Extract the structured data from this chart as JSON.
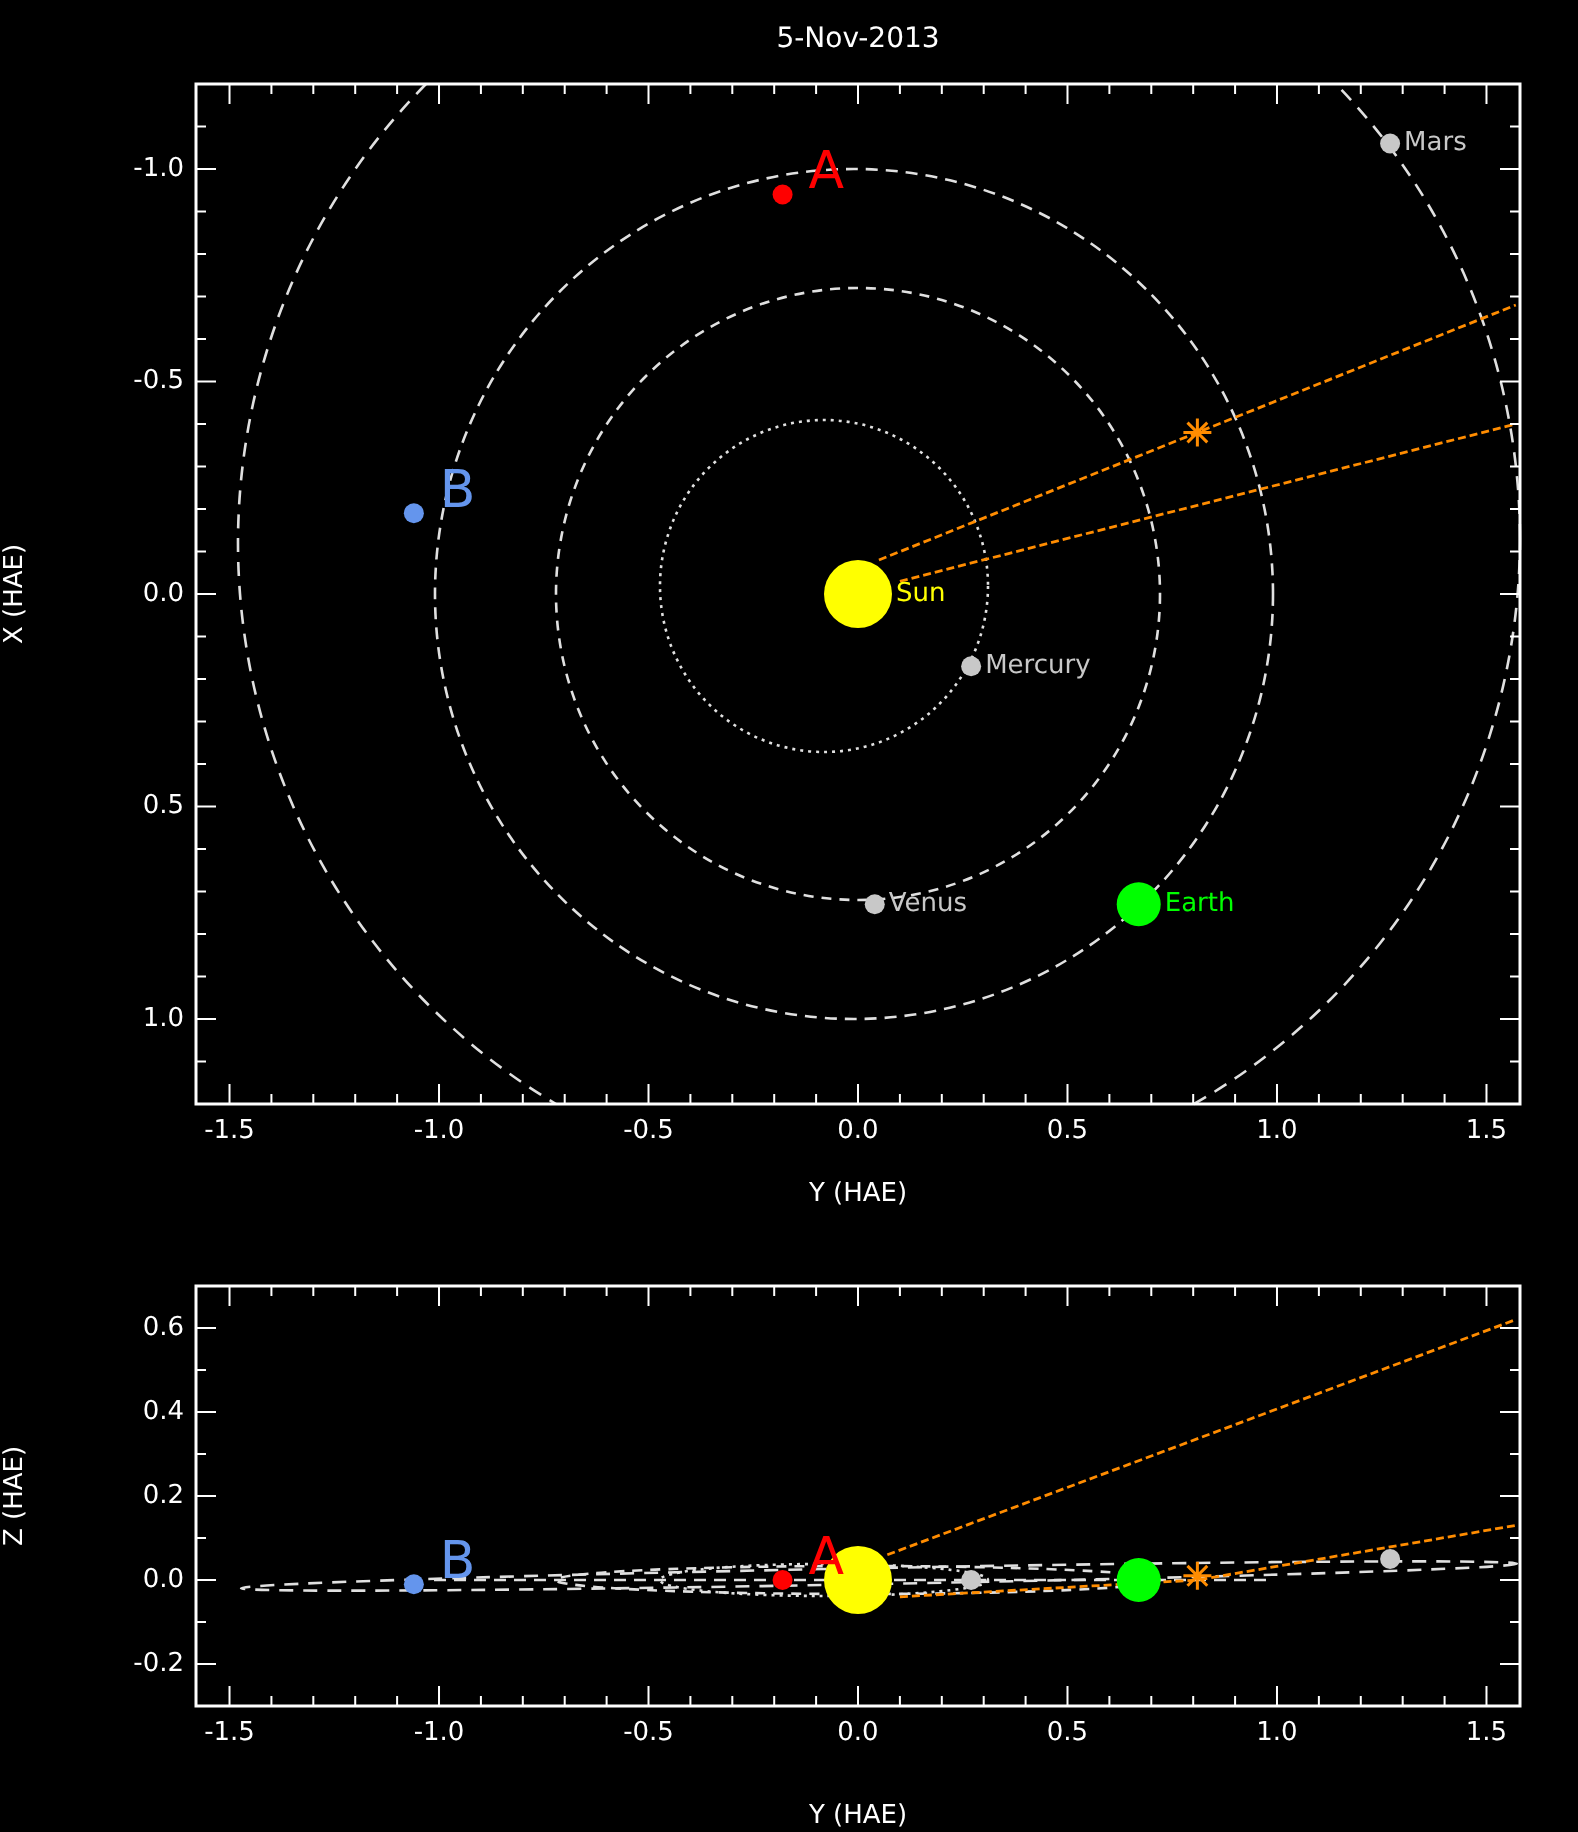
{
  "chart_data": [
    {
      "type": "scatter",
      "title": "5-Nov-2013",
      "xlabel": "Y (HAE)",
      "ylabel": "X (HAE)",
      "xlim": [
        -1.58,
        1.58
      ],
      "ylim": [
        1.2,
        -1.2
      ],
      "xticks": [
        -1.5,
        {
          "value": -1.4,
          "label": null
        },
        {
          "value": -1.3,
          "label": null
        },
        {
          "value": -1.2,
          "label": null
        },
        {
          "value": -1.1,
          "label": null
        },
        {
          "value": -1.0,
          "label": "-1.0"
        },
        {
          "value": -0.9,
          "label": null
        },
        {
          "value": -0.8,
          "label": null
        },
        {
          "value": -0.7,
          "label": null
        },
        {
          "value": -0.6,
          "label": null
        },
        -0.5,
        {
          "value": -0.4,
          "label": null
        },
        {
          "value": -0.3,
          "label": null
        },
        {
          "value": -0.2,
          "label": null
        },
        {
          "value": -0.1,
          "label": null
        },
        {
          "value": 0,
          "label": "0.0"
        },
        {
          "value": 0.1,
          "label": null
        },
        {
          "value": 0.2,
          "label": null
        },
        {
          "value": 0.3,
          "label": null
        },
        {
          "value": 0.4,
          "label": null
        },
        0.5,
        {
          "value": 0.6,
          "label": null
        },
        {
          "value": 0.7,
          "label": null
        },
        {
          "value": 0.8,
          "label": null
        },
        {
          "value": 0.9,
          "label": null
        },
        {
          "value": 1.0,
          "label": "1.0"
        },
        {
          "value": 1.1,
          "label": null
        },
        {
          "value": 1.2,
          "label": null
        },
        {
          "value": 1.3,
          "label": null
        },
        {
          "value": 1.4,
          "label": null
        },
        1.5
      ],
      "yticks": [
        {
          "value": -1.1,
          "label": null
        },
        {
          "value": -1.0,
          "label": "-1.0"
        },
        {
          "value": -0.9,
          "label": null
        },
        {
          "value": -0.8,
          "label": null
        },
        {
          "value": -0.7,
          "label": null
        },
        {
          "value": -0.6,
          "label": null
        },
        -0.5,
        {
          "value": -0.4,
          "label": null
        },
        {
          "value": -0.3,
          "label": null
        },
        {
          "value": -0.2,
          "label": null
        },
        {
          "value": -0.1,
          "label": null
        },
        {
          "value": 0,
          "label": "0.0"
        },
        {
          "value": 0.1,
          "label": null
        },
        {
          "value": 0.2,
          "label": null
        },
        {
          "value": 0.3,
          "label": null
        },
        {
          "value": 0.4,
          "label": null
        },
        0.5,
        {
          "value": 0.6,
          "label": null
        },
        {
          "value": 0.7,
          "label": null
        },
        {
          "value": 0.8,
          "label": null
        },
        {
          "value": 0.9,
          "label": null
        },
        {
          "value": 1.0,
          "label": "1.0"
        },
        {
          "value": 1.1,
          "label": null
        }
      ],
      "series": [
        {
          "type": "scatter",
          "name": "Sun",
          "color": "#ffff00",
          "x": [
            0
          ],
          "values": [
            0
          ]
        },
        {
          "type": "scatter",
          "name": "Mercury",
          "color": "#c8c8c8",
          "x": [
            0.27
          ],
          "values": [
            0.17
          ]
        },
        {
          "type": "scatter",
          "name": "Venus",
          "color": "#c8c8c8",
          "x": [
            0.04
          ],
          "values": [
            0.73
          ]
        },
        {
          "type": "scatter",
          "name": "Earth",
          "color": "#00ff00",
          "x": [
            0.67
          ],
          "values": [
            0.73
          ]
        },
        {
          "type": "scatter",
          "name": "Mars",
          "color": "#c8c8c8",
          "x": [
            1.27
          ],
          "values": [
            -1.06
          ]
        },
        {
          "type": "scatter",
          "name": "A",
          "color": "#ff0000",
          "x": [
            -0.18
          ],
          "values": [
            -0.94
          ]
        },
        {
          "type": "scatter",
          "name": "B",
          "color": "#6495ed",
          "x": [
            -1.06
          ],
          "values": [
            -0.19
          ]
        },
        {
          "type": "scatter",
          "color": "#ff8c00",
          "marker": "cross",
          "x": [
            0.81
          ],
          "values": [
            -0.38
          ]
        },
        {
          "type": "line",
          "color": "#ff8c00",
          "line_style": "dashed",
          "x": [
            0.05,
            1.57
          ],
          "values": [
            -0.08,
            -0.68
          ]
        },
        {
          "type": "line",
          "color": "#ff8c00",
          "line_style": "dashed",
          "x": [
            0.1,
            1.57
          ],
          "values": [
            -0.03,
            -0.4
          ]
        }
      ]
    },
    {
      "type": "scatter",
      "xlabel": "Y (HAE)",
      "ylabel": "Z (HAE)",
      "xlim": [
        -1.58,
        1.58
      ],
      "ylim": [
        -0.3,
        0.7
      ],
      "xticks": [
        -1.5,
        {
          "value": -1.4,
          "label": null
        },
        {
          "value": -1.3,
          "label": null
        },
        {
          "value": -1.2,
          "label": null
        },
        {
          "value": -1.1,
          "label": null
        },
        {
          "value": -1.0,
          "label": "-1.0"
        },
        {
          "value": -0.9,
          "label": null
        },
        {
          "value": -0.8,
          "label": null
        },
        {
          "value": -0.7,
          "label": null
        },
        {
          "value": -0.6,
          "label": null
        },
        -0.5,
        {
          "value": -0.4,
          "label": null
        },
        {
          "value": -0.3,
          "label": null
        },
        {
          "value": -0.2,
          "label": null
        },
        {
          "value": -0.1,
          "label": null
        },
        {
          "value": 0,
          "label": "0.0"
        },
        {
          "value": 0.1,
          "label": null
        },
        {
          "value": 0.2,
          "label": null
        },
        {
          "value": 0.3,
          "label": null
        },
        {
          "value": 0.4,
          "label": null
        },
        0.5,
        {
          "value": 0.6,
          "label": null
        },
        {
          "value": 0.7,
          "label": null
        },
        {
          "value": 0.8,
          "label": null
        },
        {
          "value": 0.9,
          "label": null
        },
        {
          "value": 1.0,
          "label": "1.0"
        },
        {
          "value": 1.1,
          "label": null
        },
        {
          "value": 1.2,
          "label": null
        },
        {
          "value": 1.3,
          "label": null
        },
        {
          "value": 1.4,
          "label": null
        },
        1.5
      ],
      "yticks": [
        -0.2,
        {
          "value": -0.1,
          "label": null
        },
        {
          "value": 0,
          "label": "0.0"
        },
        {
          "value": 0.1,
          "label": null
        },
        0.2,
        {
          "value": 0.3,
          "label": null
        },
        0.4,
        {
          "value": 0.5,
          "label": null
        },
        0.6
      ],
      "series": [
        {
          "type": "scatter",
          "color": "#ffff00",
          "x": [
            0
          ],
          "values": [
            0
          ]
        },
        {
          "type": "scatter",
          "color": "#c8c8c8",
          "x": [
            0.27
          ],
          "values": [
            0.0
          ]
        },
        {
          "type": "scatter",
          "color": "#00ff00",
          "x": [
            0.67
          ],
          "values": [
            0
          ]
        },
        {
          "type": "scatter",
          "color": "#c8c8c8",
          "x": [
            1.27
          ],
          "values": [
            0.05
          ]
        },
        {
          "type": "scatter",
          "name": "A",
          "color": "#ff0000",
          "x": [
            -0.18
          ],
          "values": [
            0.0
          ]
        },
        {
          "type": "scatter",
          "name": "B",
          "color": "#6495ed",
          "x": [
            -1.06
          ],
          "values": [
            -0.01
          ]
        },
        {
          "type": "scatter",
          "color": "#ff8c00",
          "marker": "cross",
          "x": [
            0.81
          ],
          "values": [
            0.01
          ]
        },
        {
          "type": "line",
          "color": "#ff8c00",
          "line_style": "dashed",
          "x": [
            0.07,
            1.57
          ],
          "values": [
            0.06,
            0.62
          ]
        },
        {
          "type": "line",
          "color": "#ff8c00",
          "line_style": "dashed",
          "x": [
            0.1,
            0.81,
            1.57
          ],
          "values": [
            -0.04,
            0.0,
            0.13
          ]
        }
      ]
    }
  ]
}
